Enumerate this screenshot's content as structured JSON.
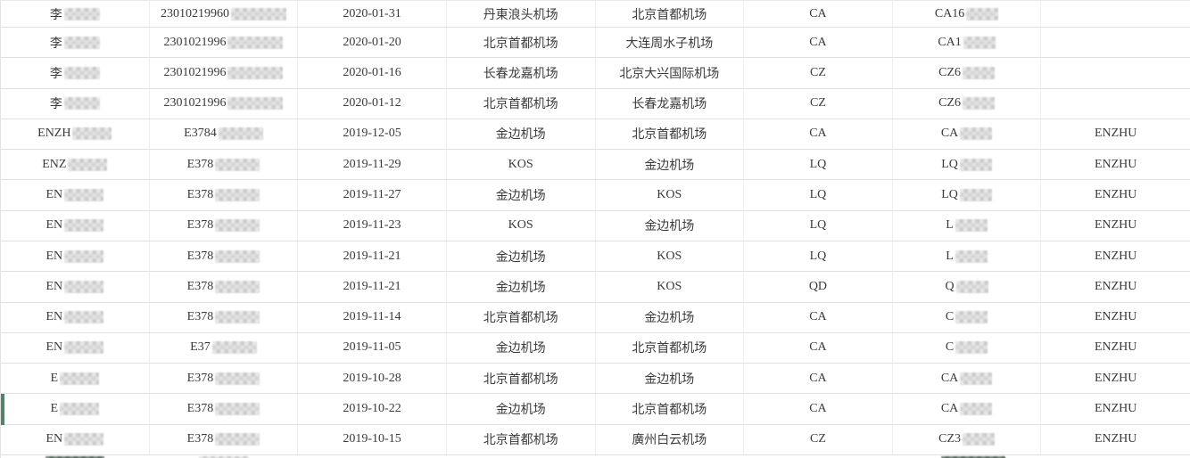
{
  "colors": {
    "selection_indicator": "#54806C",
    "row_border": "#e0e0e0",
    "column_border": "#eeeeee",
    "text": "#3a3a3a"
  },
  "table": {
    "rows": [
      {
        "name": "李",
        "id": "23010219960",
        "date": "2020-01-31",
        "departure": "丹東浪头机场",
        "arrival": "北京首都机场",
        "airline": "CA",
        "flight": "CA16",
        "traveler": ""
      },
      {
        "name": "李",
        "id": "2301021996",
        "date": "2020-01-20",
        "departure": "北京首都机场",
        "arrival": "大连周水子机场",
        "airline": "CA",
        "flight": "CA1",
        "traveler": ""
      },
      {
        "name": "李",
        "id": "2301021996",
        "date": "2020-01-16",
        "departure": "长春龙嘉机场",
        "arrival": "北京大兴国际机场",
        "airline": "CZ",
        "flight": "CZ6",
        "traveler": ""
      },
      {
        "name": "李",
        "id": "2301021996",
        "date": "2020-01-12",
        "departure": "北京首都机场",
        "arrival": "长春龙嘉机场",
        "airline": "CZ",
        "flight": "CZ6",
        "traveler": ""
      },
      {
        "name": "ENZH",
        "id": "E3784",
        "date": "2019-12-05",
        "departure": "金边机场",
        "arrival": "北京首都机场",
        "airline": "CA",
        "flight": "CA",
        "traveler": "ENZHU"
      },
      {
        "name": "ENZ",
        "id": "E378",
        "date": "2019-11-29",
        "departure": "KOS",
        "arrival": "金边机场",
        "airline": "LQ",
        "flight": "LQ",
        "traveler": "ENZHU"
      },
      {
        "name": "EN",
        "id": "E378",
        "date": "2019-11-27",
        "departure": "金边机场",
        "arrival": "KOS",
        "airline": "LQ",
        "flight": "LQ",
        "traveler": "ENZHU"
      },
      {
        "name": "EN",
        "id": "E378",
        "date": "2019-11-23",
        "departure": "KOS",
        "arrival": "金边机场",
        "airline": "LQ",
        "flight": "L",
        "traveler": "ENZHU"
      },
      {
        "name": "EN",
        "id": "E378",
        "date": "2019-11-21",
        "departure": "金边机场",
        "arrival": "KOS",
        "airline": "LQ",
        "flight": "L",
        "traveler": "ENZHU"
      },
      {
        "name": "EN",
        "id": "E378",
        "date": "2019-11-21",
        "departure": "金边机场",
        "arrival": "KOS",
        "airline": "QD",
        "flight": "Q",
        "traveler": "ENZHU"
      },
      {
        "name": "EN",
        "id": "E378",
        "date": "2019-11-14",
        "departure": "北京首都机场",
        "arrival": "金边机场",
        "airline": "CA",
        "flight": "C",
        "traveler": "ENZHU"
      },
      {
        "name": "EN",
        "id": "E37",
        "date": "2019-11-05",
        "departure": "金边机场",
        "arrival": "北京首都机场",
        "airline": "CA",
        "flight": "C",
        "traveler": "ENZHU"
      },
      {
        "name": "E",
        "id": "E378",
        "date": "2019-10-28",
        "departure": "北京首都机场",
        "arrival": "金边机场",
        "airline": "CA",
        "flight": "CA",
        "traveler": "ENZHU"
      },
      {
        "name": "E",
        "id": "E378",
        "date": "2019-10-22",
        "departure": "金边机场",
        "arrival": "北京首都机场",
        "airline": "CA",
        "flight": "CA",
        "traveler": "ENZHU"
      },
      {
        "name": "EN",
        "id": "E378",
        "date": "2019-10-15",
        "departure": "北京首都机场",
        "arrival": "廣州白云机场",
        "airline": "CZ",
        "flight": "CZ3",
        "traveler": "ENZHU"
      }
    ]
  },
  "selection": {
    "selected_row_number": 14
  },
  "partial_next_row": {
    "censor_blobs": [
      {
        "column": "name",
        "shade": "dark"
      },
      {
        "column": "id",
        "shade": "light"
      },
      {
        "column": "flight",
        "shade": "dark"
      }
    ]
  }
}
